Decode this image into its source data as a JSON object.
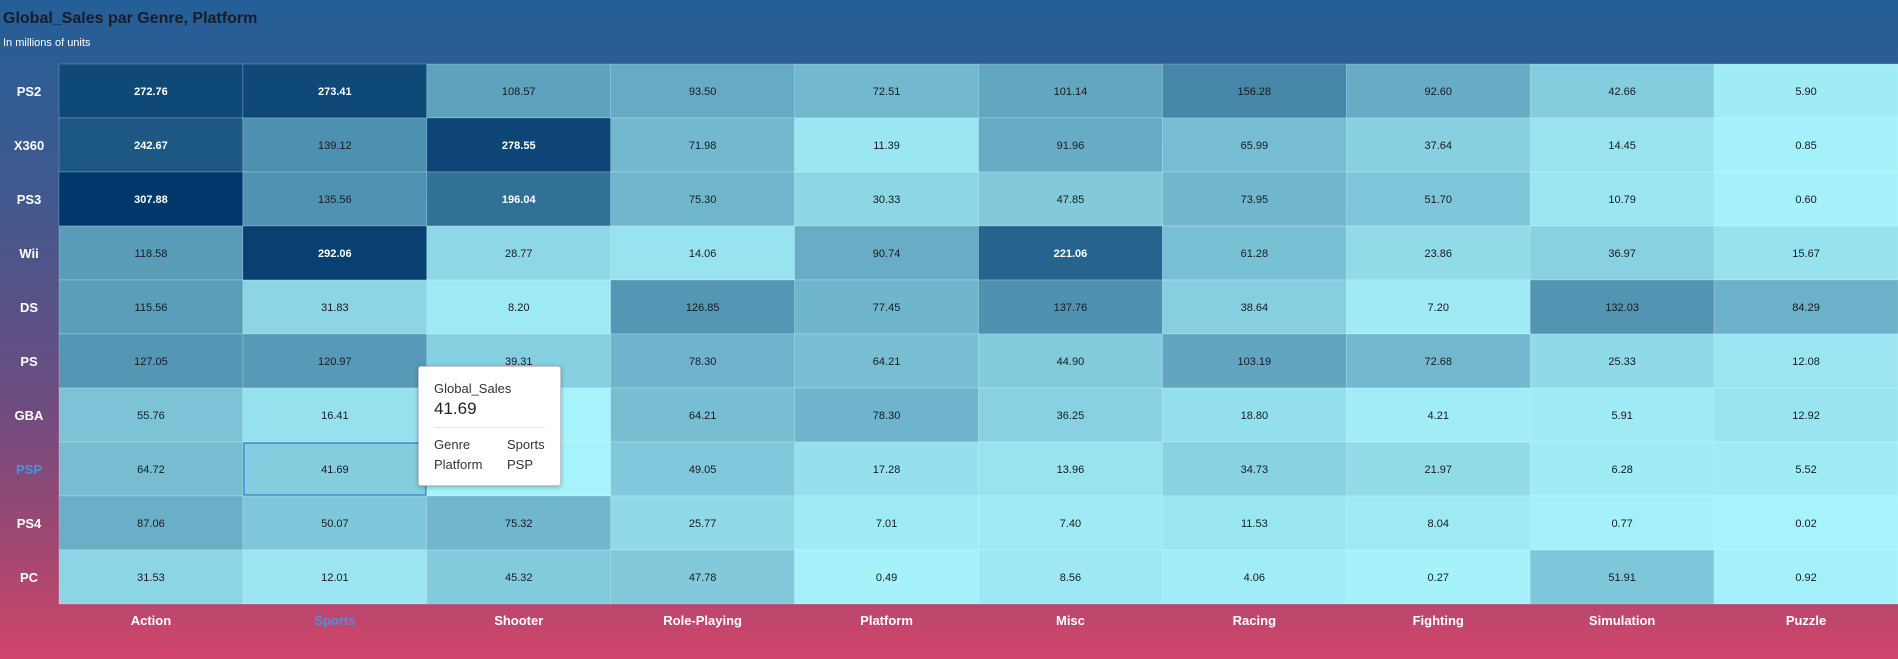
{
  "title": "Global_Sales par Genre, Platform",
  "subtitle": "In millions of units",
  "chart_data": {
    "type": "heatmap",
    "title": "Global_Sales par Genre, Platform",
    "subtitle": "In millions of units",
    "measure": "Global_Sales",
    "x_dimension": "Genre",
    "y_dimension": "Platform",
    "x_categories": [
      "Action",
      "Sports",
      "Shooter",
      "Role-Playing",
      "Platform",
      "Misc",
      "Racing",
      "Fighting",
      "Simulation",
      "Puzzle"
    ],
    "y_categories": [
      "PS2",
      "X360",
      "PS3",
      "Wii",
      "DS",
      "PS",
      "GBA",
      "PSP",
      "PS4",
      "PC"
    ],
    "values": [
      [
        272.76,
        273.41,
        108.57,
        93.5,
        72.51,
        101.14,
        156.28,
        92.6,
        42.66,
        5.9
      ],
      [
        242.67,
        139.12,
        278.55,
        71.98,
        11.39,
        91.96,
        65.99,
        37.64,
        14.45,
        0.85
      ],
      [
        307.88,
        135.56,
        196.04,
        75.3,
        30.33,
        47.85,
        73.95,
        51.7,
        10.79,
        0.6
      ],
      [
        118.58,
        292.06,
        28.77,
        14.06,
        90.74,
        221.06,
        61.28,
        23.86,
        36.97,
        15.67
      ],
      [
        115.56,
        31.83,
        8.2,
        126.85,
        77.45,
        137.76,
        38.64,
        7.2,
        132.03,
        84.29
      ],
      [
        127.05,
        120.97,
        39.31,
        78.3,
        64.21,
        44.9,
        103.19,
        72.68,
        25.33,
        12.08
      ],
      [
        55.76,
        16.41,
        null,
        64.21,
        78.3,
        36.25,
        18.8,
        4.21,
        5.91,
        12.92
      ],
      [
        64.72,
        41.69,
        null,
        49.05,
        17.28,
        13.96,
        34.73,
        21.97,
        6.28,
        5.52
      ],
      [
        87.06,
        50.07,
        75.32,
        25.77,
        7.01,
        7.4,
        11.53,
        8.04,
        0.77,
        0.02
      ],
      [
        31.53,
        12.01,
        45.32,
        47.78,
        0.49,
        8.56,
        4.06,
        0.27,
        51.91,
        0.92
      ]
    ],
    "highlight": {
      "x": "Sports",
      "y": "PSP"
    },
    "colors": {
      "low": "#a6f3fc",
      "high": "#00386b",
      "highlight_label": "#4a90e2",
      "label_dark": "#1a1a1a",
      "label_light": "#ffffff"
    }
  },
  "tooltip": {
    "measure_label": "Global_Sales",
    "value": "41.69",
    "rows": [
      {
        "key": "Genre",
        "value": "Sports"
      },
      {
        "key": "Platform",
        "value": "PSP"
      }
    ]
  }
}
